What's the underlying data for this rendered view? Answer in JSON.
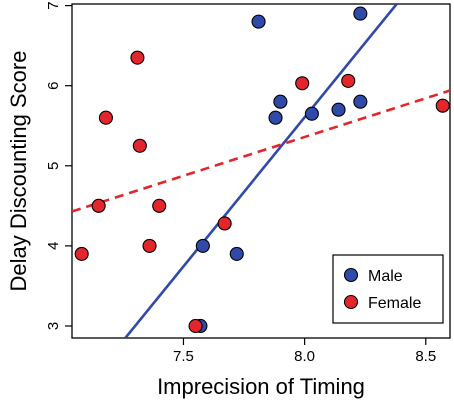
{
  "chart_data": {
    "type": "scatter",
    "title": "",
    "xlabel": "Imprecision of Timing",
    "ylabel": "Delay Discounting Score",
    "xlim": [
      7.04,
      8.6
    ],
    "ylim": [
      2.85,
      7.02
    ],
    "x_ticks": [
      7.5,
      8.0,
      8.5
    ],
    "y_ticks": [
      3,
      4,
      5,
      6,
      7
    ],
    "x_tick_labels": [
      "7.5",
      "8.0",
      "8.5"
    ],
    "y_tick_labels": [
      "3",
      "4",
      "5",
      "6",
      "7"
    ],
    "grid": false,
    "legend_position": "bottom-right",
    "series": [
      {
        "name": "Male",
        "color": "#2f4aa8",
        "line_color": "#2f4aa8",
        "line_style": "solid",
        "fit": {
          "x_start": 7.26,
          "y_start": 2.85,
          "x_end": 8.38,
          "y_end": 7.02
        },
        "points": [
          {
            "x": 7.57,
            "y": 3.0
          },
          {
            "x": 7.58,
            "y": 4.0
          },
          {
            "x": 7.72,
            "y": 3.9
          },
          {
            "x": 7.81,
            "y": 6.8
          },
          {
            "x": 7.88,
            "y": 5.6
          },
          {
            "x": 7.9,
            "y": 5.8
          },
          {
            "x": 8.03,
            "y": 5.65
          },
          {
            "x": 8.14,
            "y": 5.7
          },
          {
            "x": 8.23,
            "y": 5.8
          },
          {
            "x": 8.23,
            "y": 6.9
          }
        ]
      },
      {
        "name": "Female",
        "color": "#e3262b",
        "line_color": "#e3262b",
        "line_style": "dashed",
        "fit": {
          "x_start": 7.04,
          "y_start": 4.43,
          "x_end": 8.6,
          "y_end": 5.94
        },
        "points": [
          {
            "x": 7.08,
            "y": 3.9
          },
          {
            "x": 7.15,
            "y": 4.5
          },
          {
            "x": 7.18,
            "y": 5.6
          },
          {
            "x": 7.31,
            "y": 6.35
          },
          {
            "x": 7.32,
            "y": 5.25
          },
          {
            "x": 7.36,
            "y": 4.0
          },
          {
            "x": 7.4,
            "y": 4.5
          },
          {
            "x": 7.55,
            "y": 3.0
          },
          {
            "x": 7.67,
            "y": 4.28
          },
          {
            "x": 7.99,
            "y": 6.03
          },
          {
            "x": 8.18,
            "y": 6.06
          },
          {
            "x": 8.57,
            "y": 5.75
          }
        ]
      }
    ]
  }
}
